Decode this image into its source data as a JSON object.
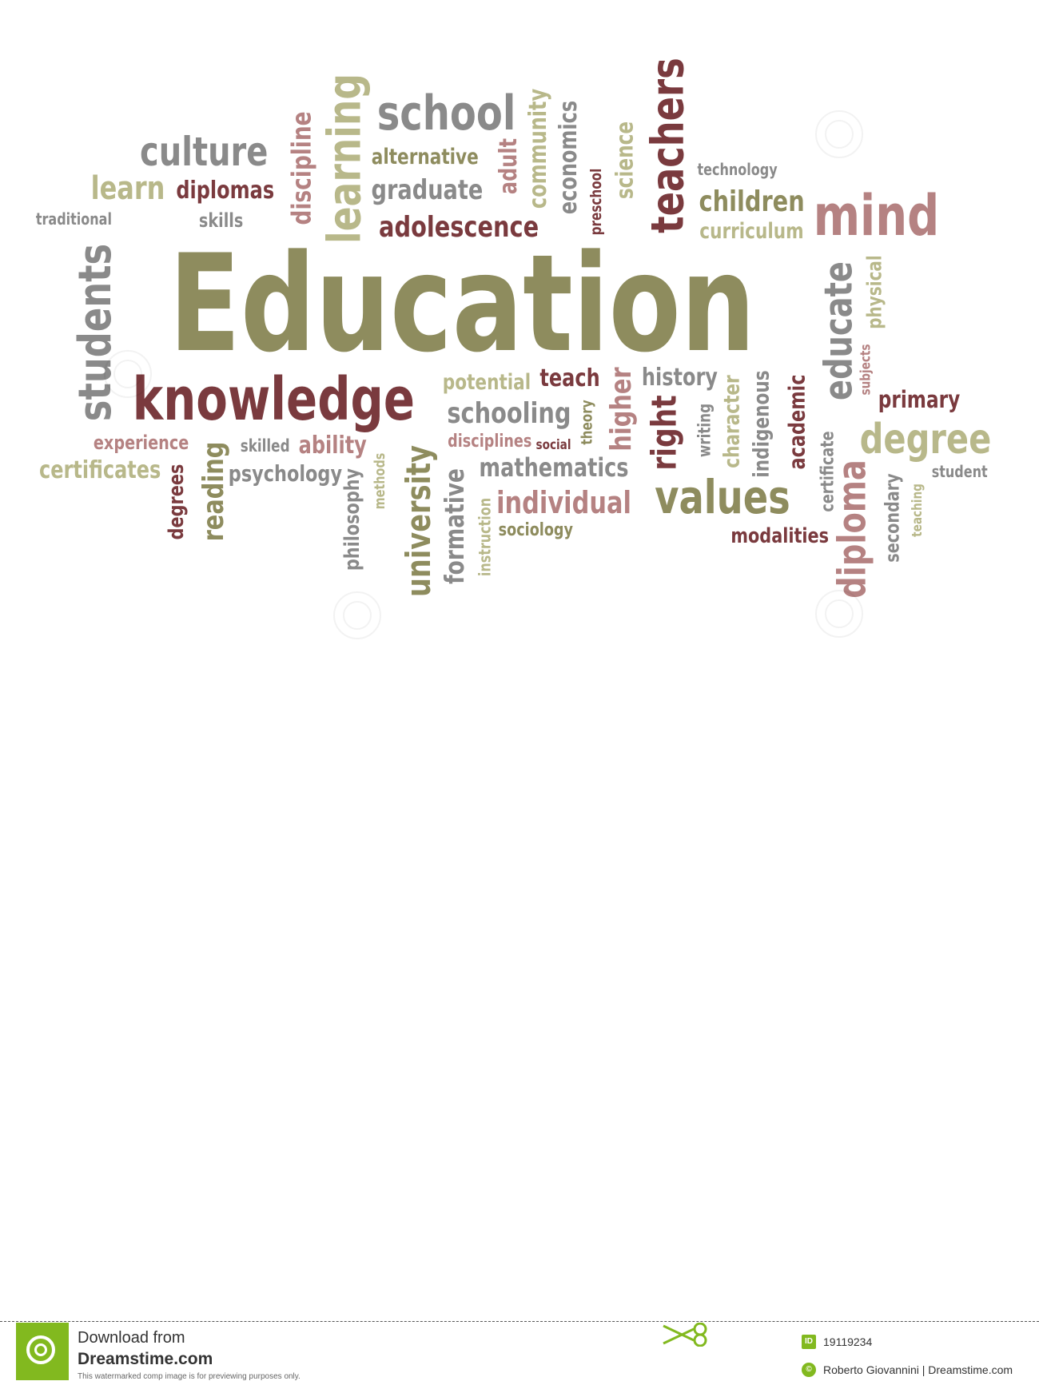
{
  "palette": {
    "olive": "#8e8c5e",
    "maroon": "#7a3a3e",
    "gray": "#8a8a8a",
    "rose": "#b58282",
    "khaki": "#b8b88a",
    "brand": "#82b91f"
  },
  "words": [
    {
      "t": "Education",
      "c": "olive"
    },
    {
      "t": "knowledge",
      "c": "maroon"
    },
    {
      "t": "students",
      "c": "gray"
    },
    {
      "t": "culture",
      "c": "gray"
    },
    {
      "t": "learn",
      "c": "khaki"
    },
    {
      "t": "diplomas",
      "c": "maroon"
    },
    {
      "t": "traditional",
      "c": "gray"
    },
    {
      "t": "skills",
      "c": "gray"
    },
    {
      "t": "discipline",
      "c": "rose"
    },
    {
      "t": "learning",
      "c": "khaki"
    },
    {
      "t": "school",
      "c": "gray"
    },
    {
      "t": "alternative",
      "c": "olive"
    },
    {
      "t": "graduate",
      "c": "gray"
    },
    {
      "t": "adolescence",
      "c": "maroon"
    },
    {
      "t": "adult",
      "c": "rose"
    },
    {
      "t": "community",
      "c": "khaki"
    },
    {
      "t": "economics",
      "c": "gray"
    },
    {
      "t": "preschool",
      "c": "maroon"
    },
    {
      "t": "science",
      "c": "khaki"
    },
    {
      "t": "teachers",
      "c": "maroon"
    },
    {
      "t": "technology",
      "c": "gray"
    },
    {
      "t": "children",
      "c": "olive"
    },
    {
      "t": "curriculum",
      "c": "khaki"
    },
    {
      "t": "mind",
      "c": "rose"
    },
    {
      "t": "educate",
      "c": "gray"
    },
    {
      "t": "physical",
      "c": "khaki"
    },
    {
      "t": "subjects",
      "c": "rose"
    },
    {
      "t": "primary",
      "c": "maroon"
    },
    {
      "t": "degree",
      "c": "khaki"
    },
    {
      "t": "student",
      "c": "gray"
    },
    {
      "t": "experience",
      "c": "rose"
    },
    {
      "t": "certificates",
      "c": "khaki"
    },
    {
      "t": "degrees",
      "c": "maroon"
    },
    {
      "t": "reading",
      "c": "olive"
    },
    {
      "t": "skilled",
      "c": "gray"
    },
    {
      "t": "ability",
      "c": "rose"
    },
    {
      "t": "psychology",
      "c": "gray"
    },
    {
      "t": "philosophy",
      "c": "gray"
    },
    {
      "t": "methods",
      "c": "khaki"
    },
    {
      "t": "university",
      "c": "olive"
    },
    {
      "t": "formative",
      "c": "gray"
    },
    {
      "t": "instruction",
      "c": "khaki"
    },
    {
      "t": "potential",
      "c": "khaki"
    },
    {
      "t": "teach",
      "c": "maroon"
    },
    {
      "t": "schooling",
      "c": "gray"
    },
    {
      "t": "disciplines",
      "c": "rose"
    },
    {
      "t": "social",
      "c": "maroon"
    },
    {
      "t": "mathematics",
      "c": "gray"
    },
    {
      "t": "individual",
      "c": "rose"
    },
    {
      "t": "sociology",
      "c": "olive"
    },
    {
      "t": "theory",
      "c": "olive"
    },
    {
      "t": "higher",
      "c": "rose"
    },
    {
      "t": "history",
      "c": "gray"
    },
    {
      "t": "right",
      "c": "maroon"
    },
    {
      "t": "writing",
      "c": "gray"
    },
    {
      "t": "character",
      "c": "khaki"
    },
    {
      "t": "indigenous",
      "c": "gray"
    },
    {
      "t": "academic",
      "c": "maroon"
    },
    {
      "t": "values",
      "c": "olive"
    },
    {
      "t": "modalities",
      "c": "maroon"
    },
    {
      "t": "certificate",
      "c": "gray"
    },
    {
      "t": "diploma",
      "c": "rose"
    },
    {
      "t": "secondary",
      "c": "gray"
    },
    {
      "t": "teaching",
      "c": "khaki"
    }
  ],
  "footer": {
    "download_line": "Download from",
    "site": "Dreamstime.com",
    "notice": "This watermarked comp image is for previewing purposes only.",
    "id_badge": "ID",
    "id_value": "19119234",
    "copyright_badge": "©",
    "credit": "Roberto Giovannini | Dreamstime.com"
  }
}
